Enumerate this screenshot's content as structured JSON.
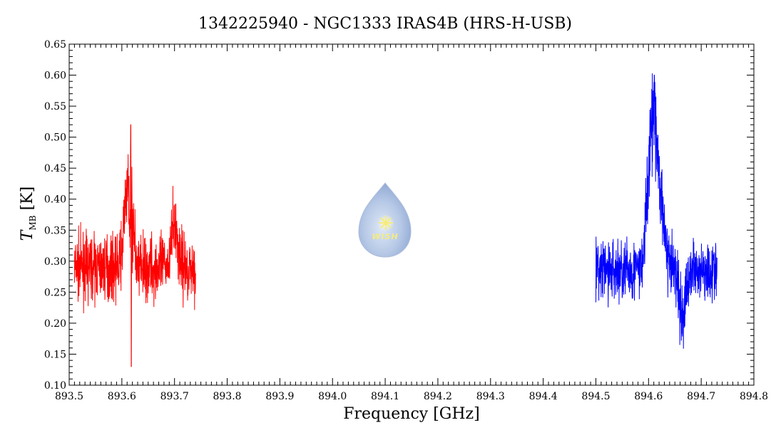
{
  "chart_data": {
    "type": "line",
    "title": "1342225940 - NGC1333 IRAS4B (HRS-H-USB)",
    "xlabel": "Frequency [GHz]",
    "ylabel_main": "T",
    "ylabel_sub": "MB",
    "ylabel_unit": " [K]",
    "xlim": [
      893.5,
      894.8
    ],
    "ylim": [
      0.1,
      0.65
    ],
    "x_ticks": [
      "893.5",
      "893.6",
      "893.7",
      "893.8",
      "893.9",
      "894.0",
      "894.1",
      "894.2",
      "894.3",
      "894.4",
      "894.5",
      "894.6",
      "894.7",
      "894.8"
    ],
    "y_ticks": [
      "0.10",
      "0.15",
      "0.20",
      "0.25",
      "0.30",
      "0.35",
      "0.40",
      "0.45",
      "0.50",
      "0.55",
      "0.60",
      "0.65"
    ],
    "grid": false,
    "series": [
      {
        "color": "#ff0000",
        "x_range": [
          893.51,
          893.74
        ],
        "baseline": 0.29,
        "noise": 0.025,
        "features": [
          {
            "x": 893.617,
            "y": 0.52
          },
          {
            "x": 893.618,
            "y": 0.13
          },
          {
            "x": 893.61,
            "y": 0.41
          },
          {
            "x": 893.7,
            "y": 0.38
          }
        ]
      },
      {
        "color": "#0000ff",
        "x_range": [
          894.5,
          894.73
        ],
        "baseline": 0.285,
        "noise": 0.025,
        "features": [
          {
            "x": 894.611,
            "y": 0.6
          },
          {
            "x": 894.6,
            "y": 0.44
          },
          {
            "x": 894.625,
            "y": 0.42
          },
          {
            "x": 894.665,
            "y": 0.2
          }
        ]
      }
    ],
    "watermark": {
      "text": "WISH"
    }
  }
}
